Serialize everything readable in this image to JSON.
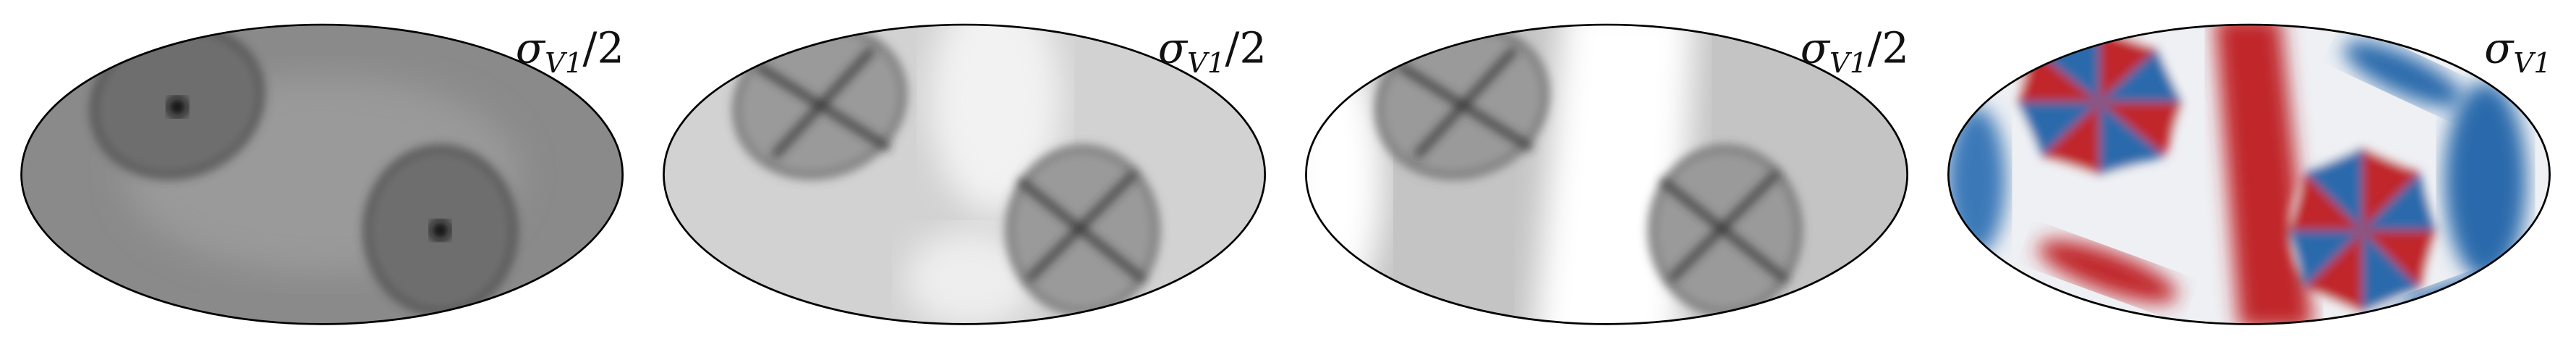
{
  "panels": [
    {
      "label": {
        "symbol": "σ",
        "subscript": "V1",
        "suffix": "/2"
      }
    },
    {
      "label": {
        "symbol": "σ",
        "subscript": "V1",
        "suffix": "/2"
      }
    },
    {
      "label": {
        "symbol": "σ",
        "subscript": "V1",
        "suffix": "/2"
      }
    },
    {
      "label": {
        "symbol": "σ",
        "subscript": "V1"
      }
    }
  ]
}
